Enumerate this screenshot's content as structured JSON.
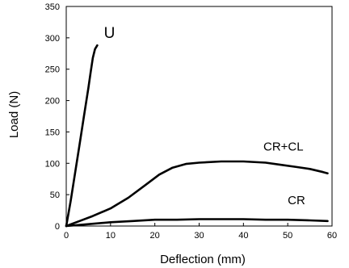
{
  "chart_data": {
    "type": "line",
    "title": "",
    "xlabel": "Deflection (mm)",
    "ylabel": "Load (N)",
    "xlim": [
      0,
      60
    ],
    "ylim": [
      0,
      350
    ],
    "xticks": [
      0,
      10,
      20,
      30,
      40,
      50,
      60
    ],
    "yticks": [
      0,
      50,
      100,
      150,
      200,
      250,
      300,
      350
    ],
    "grid": false,
    "legend": "none",
    "series_color": "#000000",
    "series": [
      {
        "name": "U",
        "points": [
          [
            0,
            0
          ],
          [
            1,
            40
          ],
          [
            2,
            85
          ],
          [
            3,
            130
          ],
          [
            4,
            175
          ],
          [
            5,
            220
          ],
          [
            5.5,
            245
          ],
          [
            6,
            268
          ],
          [
            6.5,
            282
          ],
          [
            7,
            288
          ]
        ]
      },
      {
        "name": "CR+CL",
        "points": [
          [
            0,
            0
          ],
          [
            3,
            8
          ],
          [
            6,
            16
          ],
          [
            10,
            28
          ],
          [
            14,
            45
          ],
          [
            18,
            66
          ],
          [
            21,
            82
          ],
          [
            24,
            93
          ],
          [
            27,
            99
          ],
          [
            30,
            101
          ],
          [
            35,
            103
          ],
          [
            40,
            103
          ],
          [
            45,
            101
          ],
          [
            48,
            98
          ],
          [
            52,
            94
          ],
          [
            55,
            91
          ],
          [
            58,
            86
          ],
          [
            59,
            84
          ]
        ]
      },
      {
        "name": "CR",
        "points": [
          [
            0,
            0
          ],
          [
            5,
            3
          ],
          [
            10,
            6
          ],
          [
            15,
            8
          ],
          [
            20,
            10
          ],
          [
            25,
            10
          ],
          [
            30,
            11
          ],
          [
            35,
            11
          ],
          [
            40,
            11
          ],
          [
            45,
            10
          ],
          [
            50,
            10
          ],
          [
            55,
            9
          ],
          [
            59,
            8
          ]
        ]
      }
    ],
    "labels": [
      {
        "text": "U",
        "x": 8.5,
        "y": 300,
        "size": "big"
      },
      {
        "text": "CR+CL",
        "x": 44.5,
        "y": 120,
        "size": "normal"
      },
      {
        "text": "CR",
        "x": 50,
        "y": 35,
        "size": "normal"
      }
    ]
  }
}
